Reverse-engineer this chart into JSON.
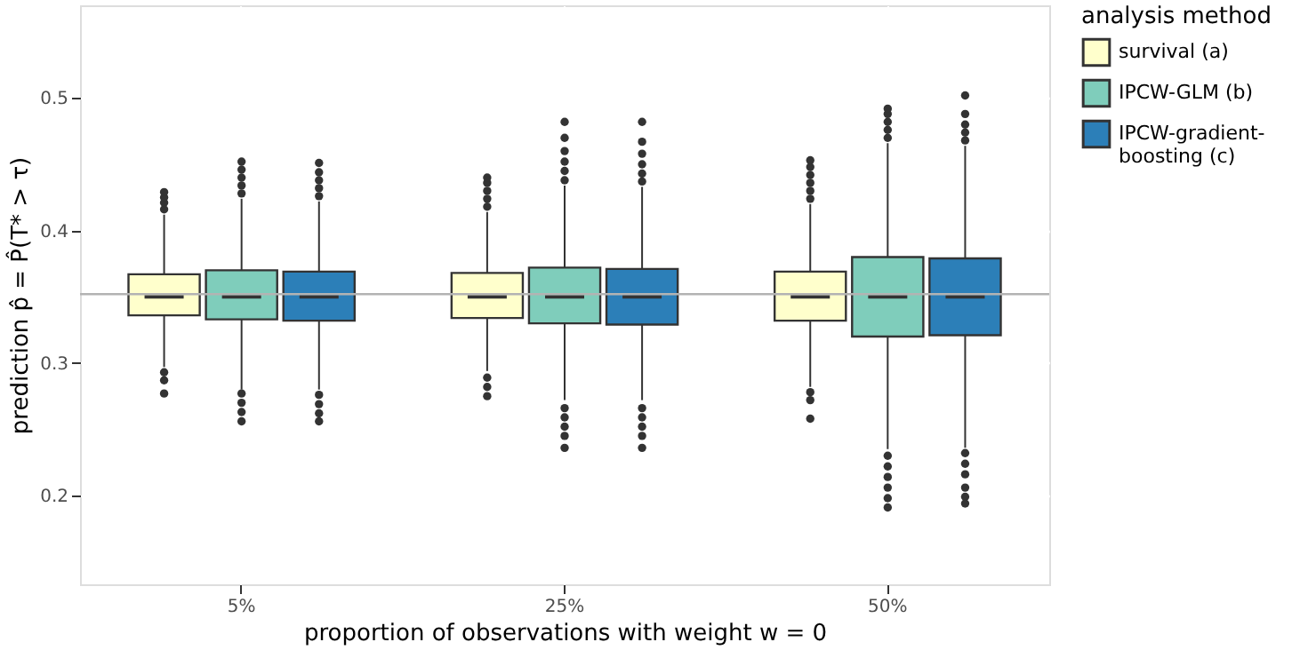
{
  "chart_data": {
    "type": "box",
    "xlabel": "proportion of observations with weight w = 0",
    "ylabel": "prediction p̂ = P̂(T* > τ)",
    "legend_title": "analysis method",
    "legend": "right",
    "grid": true,
    "categories": [
      "5%",
      "25%",
      "50%"
    ],
    "ylim": [
      0.133,
      0.57
    ],
    "yticks": [
      0.2,
      0.3,
      0.4,
      0.5
    ],
    "ref_lines": [
      {
        "axis": "y",
        "value": 0.352,
        "color": "#b3b3b3"
      }
    ],
    "series": [
      {
        "name": "survival (a)",
        "color": "#ffffcc",
        "boxes": [
          {
            "low": 0.297,
            "q1": 0.336,
            "median": 0.35,
            "q3": 0.367,
            "high": 0.412,
            "outliers": [
              0.416,
              0.421,
              0.425,
              0.429,
              0.293,
              0.287,
              0.277
            ]
          },
          {
            "low": 0.294,
            "q1": 0.334,
            "median": 0.35,
            "q3": 0.368,
            "high": 0.414,
            "outliers": [
              0.418,
              0.424,
              0.43,
              0.436,
              0.44,
              0.289,
              0.282,
              0.275
            ]
          },
          {
            "low": 0.282,
            "q1": 0.332,
            "median": 0.35,
            "q3": 0.369,
            "high": 0.42,
            "outliers": [
              0.424,
              0.43,
              0.436,
              0.442,
              0.448,
              0.453,
              0.278,
              0.272,
              0.258
            ]
          }
        ]
      },
      {
        "name": "IPCW-GLM (b)",
        "color": "#7fcdbb",
        "boxes": [
          {
            "low": 0.28,
            "q1": 0.333,
            "median": 0.35,
            "q3": 0.37,
            "high": 0.424,
            "outliers": [
              0.428,
              0.434,
              0.44,
              0.446,
              0.452,
              0.277,
              0.27,
              0.263,
              0.256
            ]
          },
          {
            "low": 0.272,
            "q1": 0.33,
            "median": 0.35,
            "q3": 0.372,
            "high": 0.434,
            "outliers": [
              0.438,
              0.445,
              0.452,
              0.46,
              0.47,
              0.482,
              0.266,
              0.259,
              0.252,
              0.245,
              0.236
            ]
          },
          {
            "low": 0.235,
            "q1": 0.32,
            "median": 0.35,
            "q3": 0.38,
            "high": 0.466,
            "outliers": [
              0.47,
              0.476,
              0.482,
              0.488,
              0.492,
              0.23,
              0.222,
              0.214,
              0.206,
              0.198,
              0.191
            ]
          }
        ]
      },
      {
        "name": "IPCW-gradient-boosting (c)",
        "color": "#2c7fb8",
        "boxes": [
          {
            "low": 0.28,
            "q1": 0.332,
            "median": 0.35,
            "q3": 0.369,
            "high": 0.422,
            "outliers": [
              0.426,
              0.432,
              0.438,
              0.444,
              0.451,
              0.276,
              0.269,
              0.262,
              0.256
            ]
          },
          {
            "low": 0.272,
            "q1": 0.329,
            "median": 0.35,
            "q3": 0.371,
            "high": 0.433,
            "outliers": [
              0.437,
              0.443,
              0.45,
              0.458,
              0.467,
              0.482,
              0.266,
              0.259,
              0.252,
              0.245,
              0.236
            ]
          },
          {
            "low": 0.236,
            "q1": 0.321,
            "median": 0.35,
            "q3": 0.379,
            "high": 0.464,
            "outliers": [
              0.468,
              0.474,
              0.48,
              0.488,
              0.502,
              0.232,
              0.224,
              0.216,
              0.206,
              0.199,
              0.194
            ]
          }
        ]
      }
    ]
  }
}
